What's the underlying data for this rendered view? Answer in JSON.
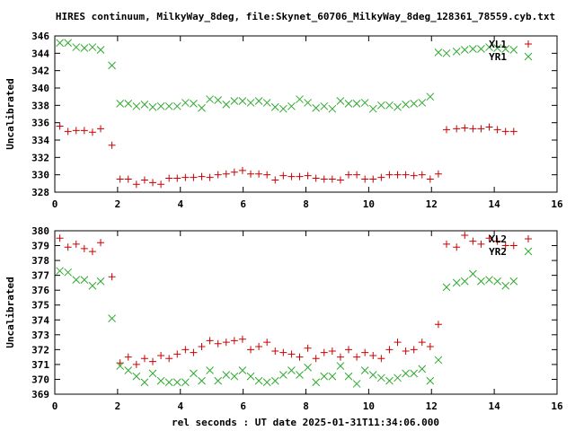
{
  "title": "HIRES continuum, MilkyWay_8deg, file:Skynet_60706_MilkyWay_8deg_128361_78559.cyb.txt",
  "xlabel": "rel seconds : UT date 2025-01-31T11:34:06.000",
  "colors": {
    "series1": "#cc0000",
    "series2": "#2eaa2e",
    "axis": "#000000"
  },
  "chart_data": [
    {
      "type": "scatter",
      "ylabel": "Uncalibrated",
      "xlim": [
        0,
        16
      ],
      "ylim": [
        328,
        346
      ],
      "xticks": [
        "0",
        "2",
        "4",
        "6",
        "8",
        "10",
        "12",
        "14",
        "16"
      ],
      "yticks": [
        "328",
        "330",
        "332",
        "334",
        "336",
        "338",
        "340",
        "342",
        "344",
        "346"
      ],
      "legend_position": "top-right",
      "series": [
        {
          "name": "XL1",
          "marker": "plus",
          "x": [
            0.16,
            0.42,
            0.68,
            0.94,
            1.2,
            1.46,
            1.82,
            2.08,
            2.34,
            2.6,
            2.86,
            3.12,
            3.38,
            3.64,
            3.9,
            4.16,
            4.42,
            4.68,
            4.94,
            5.2,
            5.46,
            5.72,
            5.98,
            6.24,
            6.5,
            6.76,
            7.02,
            7.28,
            7.54,
            7.8,
            8.06,
            8.32,
            8.58,
            8.84,
            9.1,
            9.36,
            9.62,
            9.88,
            10.14,
            10.4,
            10.66,
            10.92,
            11.18,
            11.44,
            11.7,
            11.96,
            12.22,
            12.48,
            12.8,
            13.06,
            13.32,
            13.58,
            13.84,
            14.1,
            14.36,
            14.62
          ],
          "y": [
            335.6,
            335.0,
            335.1,
            335.1,
            334.9,
            335.3,
            333.4,
            329.5,
            329.5,
            328.9,
            329.4,
            329.1,
            328.9,
            329.6,
            329.6,
            329.7,
            329.7,
            329.8,
            329.7,
            330.0,
            330.1,
            330.3,
            330.5,
            330.1,
            330.1,
            330.0,
            329.4,
            329.9,
            329.8,
            329.8,
            329.9,
            329.6,
            329.5,
            329.5,
            329.4,
            330.0,
            330.0,
            329.5,
            329.5,
            329.7,
            330.0,
            330.0,
            330.0,
            329.9,
            330.0,
            329.5,
            330.1,
            335.2,
            335.3,
            335.4,
            335.3,
            335.3,
            335.5,
            335.2,
            335.0,
            335.0
          ]
        },
        {
          "name": "YR1",
          "marker": "cross",
          "x": [
            0.16,
            0.42,
            0.68,
            0.94,
            1.2,
            1.46,
            1.82,
            2.08,
            2.34,
            2.6,
            2.86,
            3.12,
            3.38,
            3.64,
            3.9,
            4.16,
            4.42,
            4.68,
            4.94,
            5.2,
            5.46,
            5.72,
            5.98,
            6.24,
            6.5,
            6.76,
            7.02,
            7.28,
            7.54,
            7.8,
            8.06,
            8.32,
            8.58,
            8.84,
            9.1,
            9.36,
            9.62,
            9.88,
            10.14,
            10.4,
            10.66,
            10.92,
            11.18,
            11.44,
            11.7,
            11.96,
            12.22,
            12.48,
            12.8,
            13.06,
            13.32,
            13.58,
            13.84,
            14.1,
            14.36,
            14.62
          ],
          "y": [
            345.2,
            345.2,
            344.7,
            344.6,
            344.7,
            344.4,
            342.6,
            338.2,
            338.2,
            337.9,
            338.1,
            337.8,
            337.9,
            337.9,
            337.9,
            338.3,
            338.2,
            337.7,
            338.7,
            338.6,
            338.1,
            338.5,
            338.5,
            338.3,
            338.5,
            338.3,
            337.8,
            337.6,
            337.9,
            338.7,
            338.3,
            337.7,
            337.9,
            337.6,
            338.5,
            338.2,
            338.2,
            338.3,
            337.6,
            338.0,
            338.0,
            337.8,
            338.1,
            338.2,
            338.3,
            339.0,
            344.1,
            344.0,
            344.2,
            344.4,
            344.5,
            344.5,
            344.7,
            344.6,
            344.5,
            344.4
          ]
        }
      ]
    },
    {
      "type": "scatter",
      "ylabel": "Uncalibrated",
      "xlim": [
        0,
        16
      ],
      "ylim": [
        369,
        380
      ],
      "xticks": [
        "0",
        "2",
        "4",
        "6",
        "8",
        "10",
        "12",
        "14",
        "16"
      ],
      "yticks": [
        "369",
        "370",
        "371",
        "372",
        "373",
        "374",
        "375",
        "376",
        "377",
        "378",
        "379",
        "380"
      ],
      "legend_position": "top-right",
      "series": [
        {
          "name": "XL2",
          "marker": "plus",
          "x": [
            0.16,
            0.42,
            0.68,
            0.94,
            1.2,
            1.46,
            1.82,
            2.08,
            2.34,
            2.6,
            2.86,
            3.12,
            3.38,
            3.64,
            3.9,
            4.16,
            4.42,
            4.68,
            4.94,
            5.2,
            5.46,
            5.72,
            5.98,
            6.24,
            6.5,
            6.76,
            7.02,
            7.28,
            7.54,
            7.8,
            8.06,
            8.32,
            8.58,
            8.84,
            9.1,
            9.36,
            9.62,
            9.88,
            10.14,
            10.4,
            10.66,
            10.92,
            11.18,
            11.44,
            11.7,
            11.96,
            12.22,
            12.48,
            12.8,
            13.06,
            13.32,
            13.58,
            13.84,
            14.1,
            14.36,
            14.62
          ],
          "y": [
            379.5,
            378.9,
            379.1,
            378.8,
            378.6,
            379.2,
            376.9,
            371.1,
            371.5,
            371.0,
            371.4,
            371.2,
            371.6,
            371.4,
            371.7,
            372.0,
            371.8,
            372.2,
            372.6,
            372.4,
            372.5,
            372.6,
            372.7,
            372.0,
            372.2,
            372.5,
            371.9,
            371.8,
            371.7,
            371.5,
            372.1,
            371.4,
            371.8,
            371.9,
            371.5,
            372.0,
            371.5,
            371.8,
            371.6,
            371.4,
            372.0,
            372.5,
            371.9,
            372.0,
            372.5,
            372.2,
            373.7,
            379.1,
            378.9,
            379.7,
            379.3,
            379.1,
            379.5,
            379.3,
            379.0,
            379.0
          ]
        },
        {
          "name": "YR2",
          "marker": "cross",
          "x": [
            0.16,
            0.42,
            0.68,
            0.94,
            1.2,
            1.46,
            1.82,
            2.08,
            2.34,
            2.6,
            2.86,
            3.12,
            3.38,
            3.64,
            3.9,
            4.16,
            4.42,
            4.68,
            4.94,
            5.2,
            5.46,
            5.72,
            5.98,
            6.24,
            6.5,
            6.76,
            7.02,
            7.28,
            7.54,
            7.8,
            8.06,
            8.32,
            8.58,
            8.84,
            9.1,
            9.36,
            9.62,
            9.88,
            10.14,
            10.4,
            10.66,
            10.92,
            11.18,
            11.44,
            11.7,
            11.96,
            12.22,
            12.48,
            12.8,
            13.06,
            13.32,
            13.58,
            13.84,
            14.1,
            14.36,
            14.62
          ],
          "y": [
            377.3,
            377.2,
            376.7,
            376.7,
            376.3,
            376.6,
            374.1,
            370.9,
            370.6,
            370.2,
            369.8,
            370.4,
            369.9,
            369.8,
            369.8,
            369.8,
            370.4,
            369.9,
            370.6,
            369.9,
            370.3,
            370.2,
            370.6,
            370.2,
            369.9,
            369.8,
            369.9,
            370.3,
            370.6,
            370.3,
            370.8,
            369.8,
            370.2,
            370.2,
            370.9,
            370.2,
            369.7,
            370.6,
            370.3,
            370.1,
            369.9,
            370.1,
            370.4,
            370.4,
            370.7,
            369.9,
            371.3,
            376.2,
            376.5,
            376.6,
            377.1,
            376.6,
            376.7,
            376.6,
            376.3,
            376.6
          ]
        }
      ]
    }
  ]
}
